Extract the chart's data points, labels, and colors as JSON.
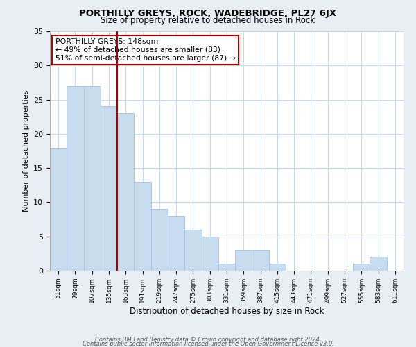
{
  "title": "PORTHILLY GREYS, ROCK, WADEBRIDGE, PL27 6JX",
  "subtitle": "Size of property relative to detached houses in Rock",
  "xlabel": "Distribution of detached houses by size in Rock",
  "ylabel": "Number of detached properties",
  "footer_line1": "Contains HM Land Registry data © Crown copyright and database right 2024.",
  "footer_line2": "Contains public sector information licensed under the Open Government Licence v3.0.",
  "categories": [
    "51sqm",
    "79sqm",
    "107sqm",
    "135sqm",
    "163sqm",
    "191sqm",
    "219sqm",
    "247sqm",
    "275sqm",
    "303sqm",
    "331sqm",
    "359sqm",
    "387sqm",
    "415sqm",
    "443sqm",
    "471sqm",
    "499sqm",
    "527sqm",
    "555sqm",
    "583sqm",
    "611sqm"
  ],
  "values": [
    18,
    27,
    27,
    24,
    23,
    13,
    9,
    8,
    6,
    5,
    1,
    3,
    3,
    1,
    0,
    0,
    0,
    0,
    1,
    2,
    0
  ],
  "bar_color": "#c8dcf0",
  "bar_edge_color": "#a8c4e0",
  "vline_x": 3.5,
  "vline_color": "#aa0000",
  "annotation_title": "PORTHILLY GREYS: 148sqm",
  "annotation_line1": "← 49% of detached houses are smaller (83)",
  "annotation_line2": "51% of semi-detached houses are larger (87) →",
  "annotation_box_color": "#ffffff",
  "annotation_box_edge": "#aa0000",
  "ylim": [
    0,
    35
  ],
  "yticks": [
    0,
    5,
    10,
    15,
    20,
    25,
    30,
    35
  ],
  "background_color": "#e8eef4",
  "plot_background_color": "#ffffff",
  "grid_color": "#c8d8e8",
  "title_fontsize": 9.5,
  "subtitle_fontsize": 8.5
}
